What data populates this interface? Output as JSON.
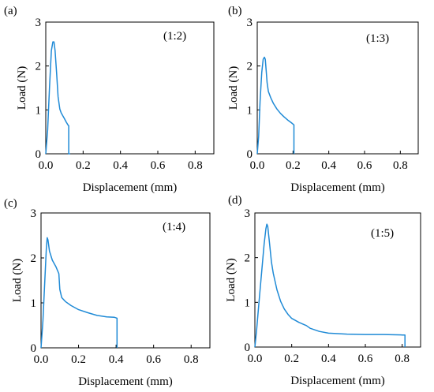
{
  "chart_data": [
    {
      "type": "line",
      "panel_label": "(a)",
      "annotation": "(1:2)",
      "xlabel": "Displacement (mm)",
      "ylabel": "Load (N)",
      "xlim": [
        0,
        0.9
      ],
      "ylim": [
        0,
        3
      ],
      "xticks": [
        "0.0",
        "0.2",
        "0.4",
        "0.6",
        "0.8"
      ],
      "yticks": [
        "0",
        "1",
        "2",
        "3"
      ],
      "grid": false,
      "series": [
        {
          "color": "#1f8ad6",
          "x": [
            0.0,
            0.01,
            0.02,
            0.03,
            0.038,
            0.044,
            0.05,
            0.058,
            0.066,
            0.075,
            0.083,
            0.092,
            0.1,
            0.11,
            0.12,
            0.123,
            0.123,
            0.131
          ],
          "y": [
            0.0,
            0.55,
            1.5,
            2.35,
            2.55,
            2.55,
            2.35,
            1.85,
            1.3,
            1.02,
            0.93,
            0.86,
            0.8,
            0.72,
            0.65,
            0.64,
            0.0,
            0.0
          ]
        }
      ]
    },
    {
      "type": "line",
      "panel_label": "(b)",
      "annotation": "(1:3)",
      "xlabel": "Displacement (mm)",
      "ylabel": "Load (N)",
      "xlim": [
        0,
        0.9
      ],
      "ylim": [
        0,
        3
      ],
      "xticks": [
        "0.0",
        "0.2",
        "0.4",
        "0.6",
        "0.8"
      ],
      "yticks": [
        "0",
        "1",
        "2",
        "3"
      ],
      "grid": false,
      "series": [
        {
          "color": "#1f8ad6",
          "x": [
            0.0,
            0.008,
            0.016,
            0.025,
            0.033,
            0.04,
            0.045,
            0.05,
            0.055,
            0.062,
            0.075,
            0.09,
            0.11,
            0.13,
            0.15,
            0.17,
            0.19,
            0.205,
            0.205
          ],
          "y": [
            0.0,
            0.4,
            1.2,
            1.85,
            2.15,
            2.2,
            2.15,
            1.9,
            1.62,
            1.42,
            1.28,
            1.15,
            1.02,
            0.92,
            0.84,
            0.77,
            0.71,
            0.66,
            0.0
          ]
        }
      ]
    },
    {
      "type": "line",
      "panel_label": "(c)",
      "annotation": "(1:4)",
      "xlabel": "Displacement (mm)",
      "ylabel": "Load (N)",
      "xlim": [
        0,
        0.9
      ],
      "ylim": [
        0,
        3
      ],
      "xticks": [
        "0.0",
        "0.2",
        "0.4",
        "0.6",
        "0.8"
      ],
      "yticks": [
        "0",
        "1",
        "2",
        "3"
      ],
      "grid": false,
      "series": [
        {
          "color": "#1f8ad6",
          "x": [
            0.0,
            0.01,
            0.02,
            0.028,
            0.033,
            0.037,
            0.045,
            0.06,
            0.08,
            0.095,
            0.1,
            0.11,
            0.13,
            0.16,
            0.2,
            0.25,
            0.3,
            0.35,
            0.39,
            0.405,
            0.405
          ],
          "y": [
            0.0,
            0.6,
            1.5,
            2.2,
            2.45,
            2.4,
            2.15,
            1.95,
            1.8,
            1.65,
            1.3,
            1.12,
            1.03,
            0.94,
            0.85,
            0.78,
            0.72,
            0.69,
            0.68,
            0.66,
            0.0
          ]
        }
      ]
    },
    {
      "type": "line",
      "panel_label": "(d)",
      "annotation": "(1:5)",
      "xlabel": "Displacement (mm)",
      "ylabel": "Load (N)",
      "xlim": [
        0,
        0.9
      ],
      "ylim": [
        0,
        3
      ],
      "xticks": [
        "0.0",
        "0.2",
        "0.4",
        "0.6",
        "0.8"
      ],
      "yticks": [
        "0",
        "1",
        "2",
        "3"
      ],
      "grid": false,
      "series": [
        {
          "color": "#1f8ad6",
          "x": [
            0.0,
            0.01,
            0.02,
            0.035,
            0.05,
            0.06,
            0.065,
            0.07,
            0.08,
            0.09,
            0.1,
            0.12,
            0.14,
            0.16,
            0.18,
            0.2,
            0.24,
            0.28,
            0.3,
            0.35,
            0.4,
            0.5,
            0.6,
            0.7,
            0.8,
            0.815,
            0.815
          ],
          "y": [
            0.0,
            0.4,
            0.9,
            1.6,
            2.3,
            2.65,
            2.75,
            2.7,
            2.3,
            1.9,
            1.65,
            1.28,
            1.02,
            0.85,
            0.73,
            0.64,
            0.55,
            0.48,
            0.42,
            0.35,
            0.31,
            0.29,
            0.28,
            0.28,
            0.27,
            0.27,
            0.0
          ]
        }
      ]
    }
  ]
}
